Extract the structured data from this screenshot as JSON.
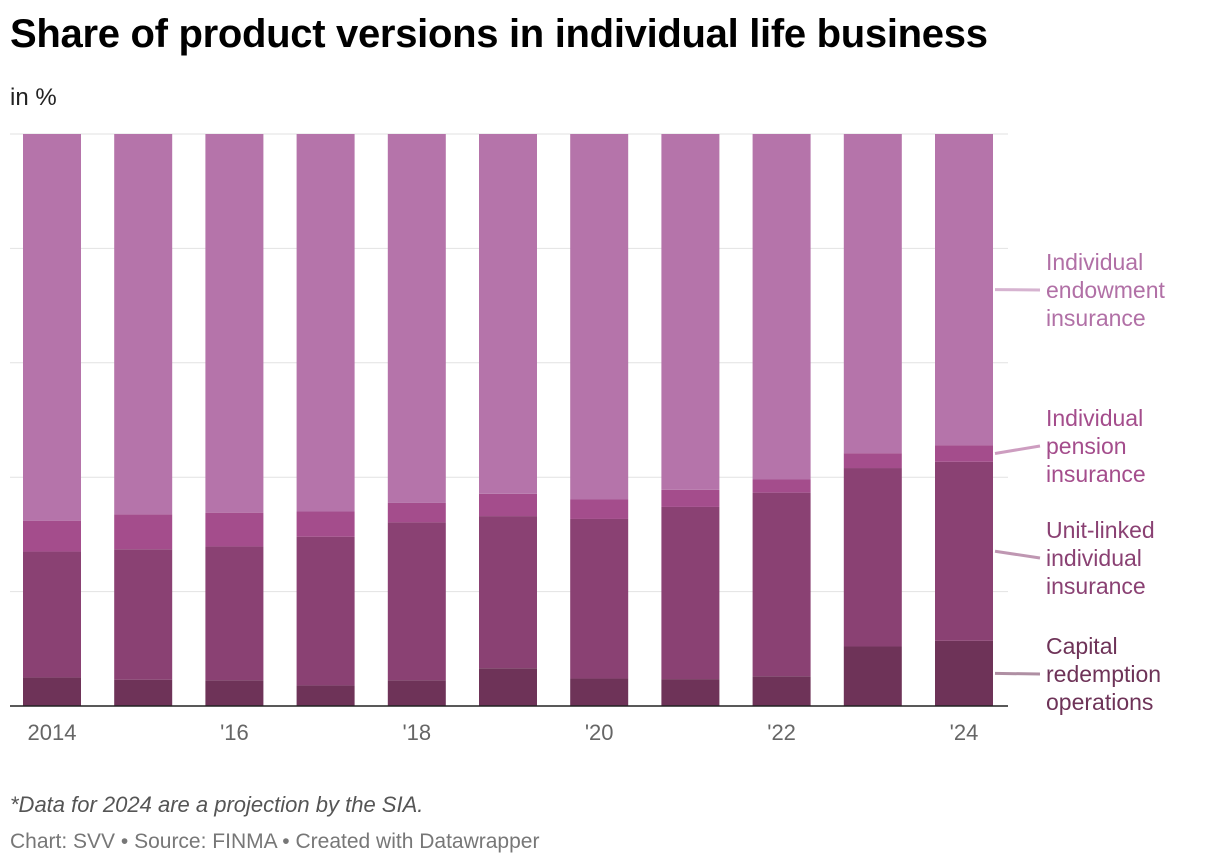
{
  "title": "Share of product versions in individual life business",
  "subtitle": "in %",
  "footnote": "*Data for 2024 are a projection by the SIA.",
  "credit": {
    "chart": "Chart: SVV",
    "sep1": " • ",
    "source": "Source: FINMA",
    "sep2": " • ",
    "created": "Created with Datawrapper"
  },
  "chart_data": {
    "type": "bar",
    "stacked": true,
    "categories": [
      "2014",
      "2015",
      "2016",
      "2017",
      "2018",
      "2019",
      "2020",
      "2021",
      "2022",
      "2023",
      "2024"
    ],
    "tick_labels": [
      "2014",
      "",
      "'16",
      "",
      "'18",
      "",
      "'20",
      "",
      "'22",
      "",
      "'24"
    ],
    "ylim": [
      0,
      100
    ],
    "grid": true,
    "legend_placement": "right (direct labels)",
    "series": [
      {
        "name": "Capital redemption operations",
        "color": "#6e3358",
        "label_color": "#6e3358",
        "values": [
          5.0,
          4.6,
          4.5,
          3.6,
          4.5,
          6.6,
          4.8,
          4.7,
          5.2,
          10.4,
          11.4
        ]
      },
      {
        "name": "Unit-linked individual insurance",
        "color": "#8a4173",
        "label_color": "#8a4173",
        "values": [
          22.0,
          22.8,
          23.4,
          26.0,
          27.6,
          26.6,
          27.9,
          30.1,
          32.1,
          31.2,
          31.3
        ]
      },
      {
        "name": "Individual pension insurance",
        "color": "#a44d8c",
        "label_color": "#a44d8c",
        "values": [
          5.4,
          6.1,
          5.9,
          4.4,
          3.4,
          3.9,
          3.4,
          3.0,
          2.3,
          2.6,
          2.9
        ]
      },
      {
        "name": "Individual endowment insurance",
        "color": "#b574aa",
        "label_color": "#b170a6",
        "values": [
          67.6,
          66.5,
          66.2,
          66.0,
          64.5,
          62.9,
          63.9,
          62.2,
          60.4,
          55.8,
          54.4
        ]
      }
    ]
  }
}
